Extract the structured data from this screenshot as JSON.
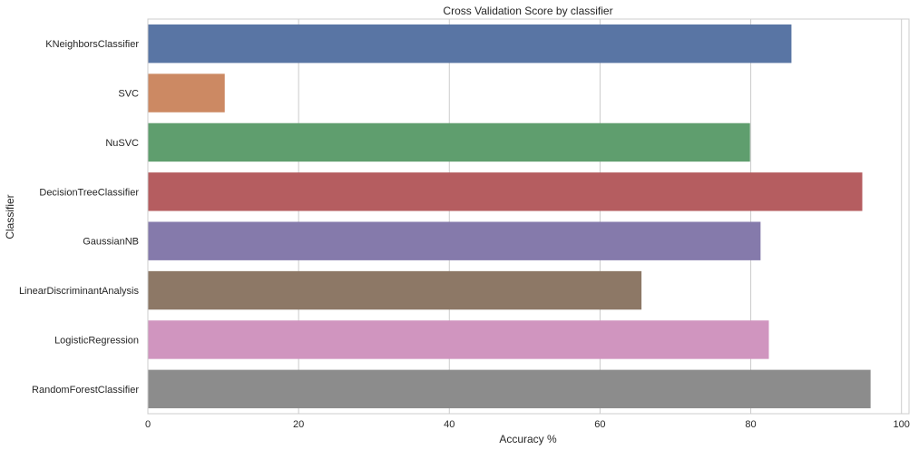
{
  "chart_data": {
    "type": "bar",
    "orientation": "horizontal",
    "title": "Cross Validation Score by classifier",
    "xlabel": "Accuracy %",
    "ylabel": "Classifier",
    "xlim": [
      0,
      101
    ],
    "xticks": [
      "0",
      "20",
      "40",
      "60",
      "80",
      "100"
    ],
    "grid": true,
    "categories": [
      "KNeighborsClassifier",
      "SVC",
      "NuSVC",
      "DecisionTreeClassifier",
      "GaussianNB",
      "LinearDiscriminantAnalysis",
      "LogisticRegression",
      "RandomForestClassifier"
    ],
    "values": [
      85.4,
      10.2,
      79.9,
      94.8,
      81.3,
      65.5,
      82.4,
      95.9
    ],
    "colors": [
      "#5975a4",
      "#cc8963",
      "#5f9e6e",
      "#b55d60",
      "#857aab",
      "#8d7866",
      "#d095bf",
      "#8c8c8c"
    ]
  }
}
